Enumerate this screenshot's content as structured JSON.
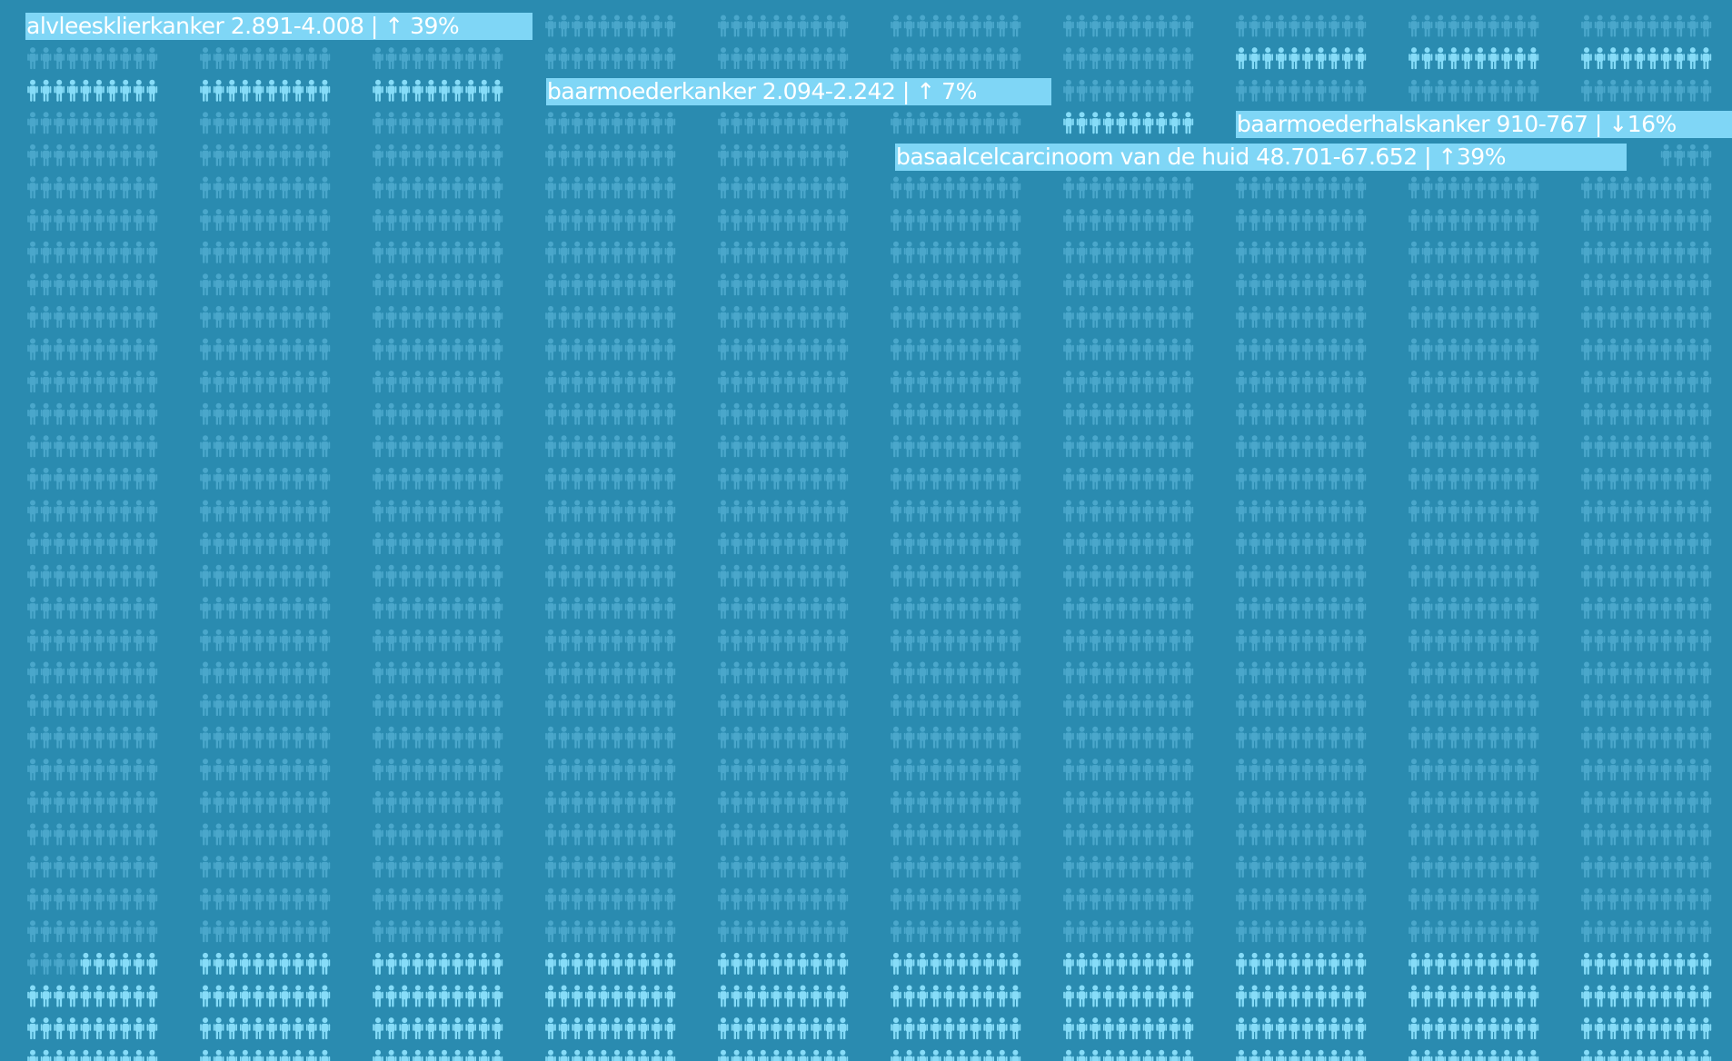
{
  "colors": {
    "background": "#2a8bb0",
    "figure_dim": "#4aa7cb",
    "figure_highlight": "#86dcf8",
    "callout_bg": "#7fd6f6",
    "callout_text": "#ffffff"
  },
  "icon": "person-figure-icon",
  "callouts": [
    {
      "name": "callout-alvleesklierkanker",
      "text": "alvleesklierkanker 2.891-4.008 | ↑ 39%"
    },
    {
      "name": "callout-baarmoederkanker",
      "text": "baarmoederkanker 2.094-2.242 | ↑ 7%"
    },
    {
      "name": "callout-baarmoederhalskanker",
      "text": "baarmoederhalskanker 910-767 | ↓16%"
    },
    {
      "name": "callout-basaalcelcarcinoom",
      "text": "basaalcelcarcinoom van de huid 48.701-67.652 | ↑39%"
    }
  ]
}
